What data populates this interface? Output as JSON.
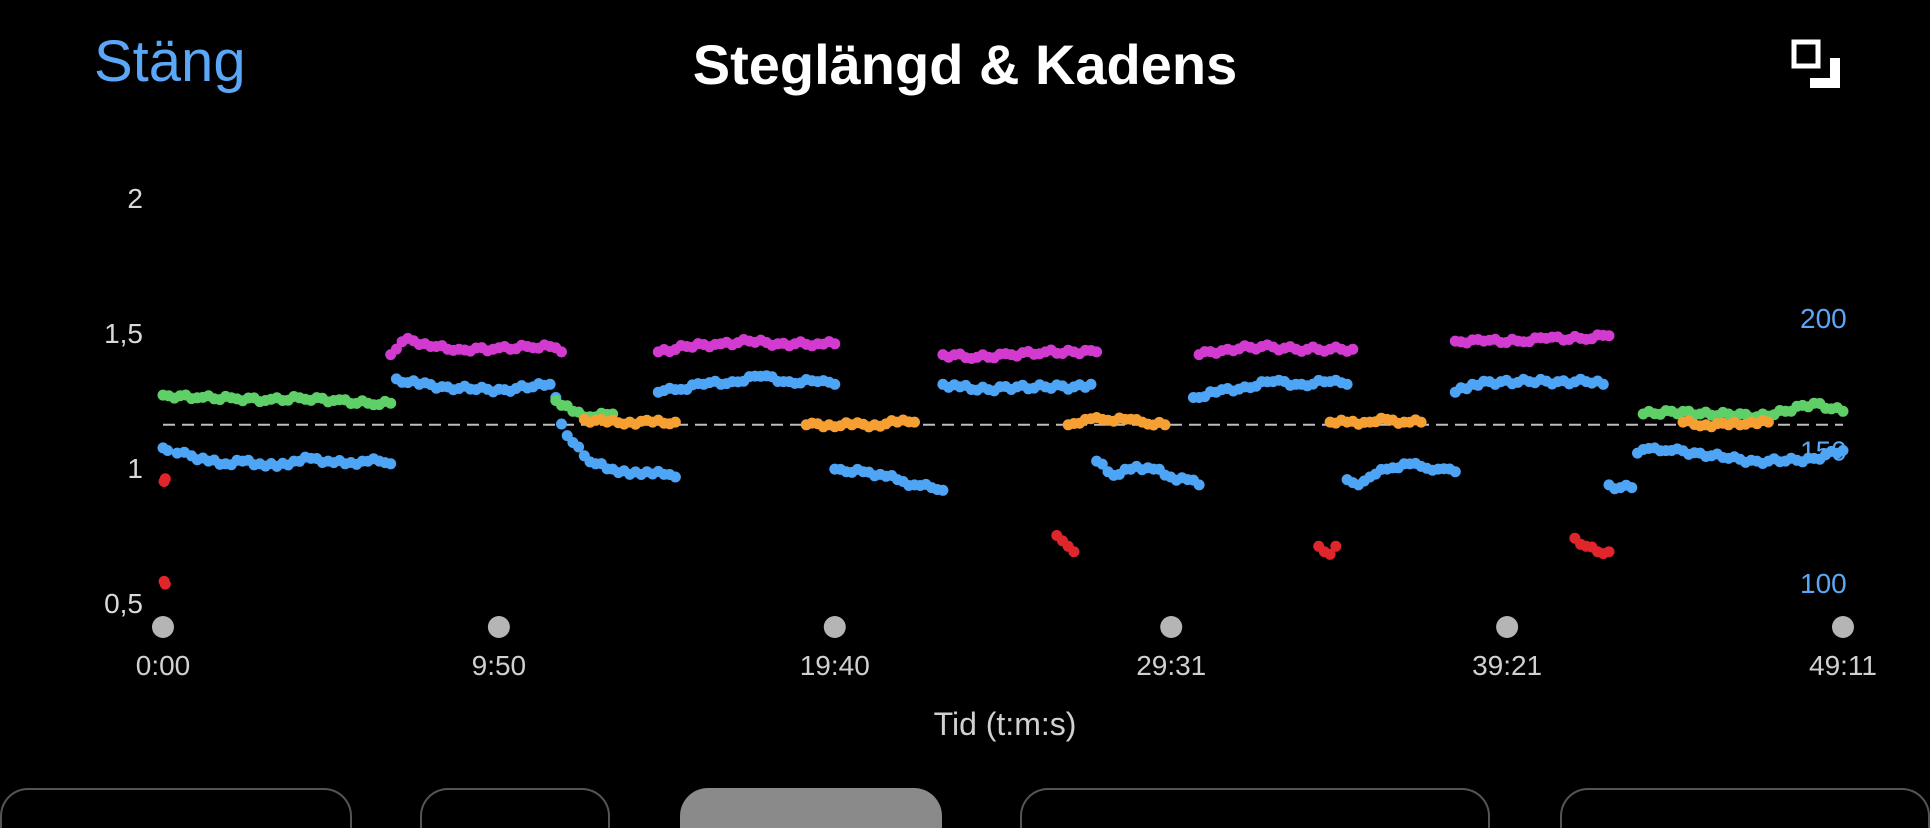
{
  "header": {
    "close_label": "Stäng",
    "title": "Steglängd & Kadens",
    "expand_icon": "expand-icon"
  },
  "chart_data": {
    "type": "scatter",
    "title": "Steglängd & Kadens",
    "xlabel": "Tid (t:m:s)",
    "x_ticks": [
      "0:00",
      "9:50",
      "19:40",
      "29:31",
      "39:21",
      "49:11"
    ],
    "x_tick_seconds": [
      0,
      590,
      1180,
      1771,
      2361,
      2951
    ],
    "xlim": [
      0,
      2951
    ],
    "y_left": {
      "ticks": [
        "2",
        "1,5",
        "1",
        "0,5"
      ],
      "tick_values": [
        2,
        1.5,
        1,
        0.5
      ],
      "ylim": [
        0.5,
        2
      ],
      "color": "#d9d9d9"
    },
    "y_right": {
      "ticks": [
        "200",
        "150",
        "100"
      ],
      "tick_values": [
        200,
        150,
        100
      ],
      "ylim": [
        100,
        200
      ],
      "color": "#5aa7f7"
    },
    "reference_line": {
      "axis": "left",
      "value": 1.16,
      "style": "dashed"
    },
    "colors": {
      "cadence": "#4ea4f5",
      "zone_red": "#e0262b",
      "zone_orange": "#f6a033",
      "zone_green": "#5fd068",
      "zone_pink": "#d33bd0",
      "marker": "#b5b5b5"
    },
    "series": [
      {
        "axis": "right",
        "color": "cadence",
        "segments": [
          [
            [
              0,
              151
            ],
            [
              8,
              150
            ],
            [
              25,
              149
            ],
            [
              50,
              148
            ],
            [
              80,
              146
            ],
            [
              110,
              145
            ],
            [
              140,
              146
            ],
            [
              170,
              145
            ],
            [
              200,
              144
            ],
            [
              230,
              146
            ],
            [
              260,
              147
            ],
            [
              290,
              146
            ],
            [
              320,
              145
            ],
            [
              350,
              146
            ],
            [
              380,
              146
            ],
            [
              400,
              145
            ]
          ],
          [
            [
              410,
              177
            ],
            [
              450,
              175
            ],
            [
              500,
              174
            ],
            [
              550,
              173
            ],
            [
              600,
              173
            ],
            [
              650,
              174
            ],
            [
              680,
              175
            ],
            [
              690,
              170
            ],
            [
              700,
              160
            ],
            [
              720,
              153
            ],
            [
              740,
              148
            ],
            [
              760,
              145
            ],
            [
              790,
              143
            ],
            [
              820,
              141
            ],
            [
              850,
              142
            ],
            [
              880,
              141
            ],
            [
              900,
              140
            ]
          ],
          [
            [
              870,
              172
            ],
            [
              900,
              173
            ],
            [
              950,
              175
            ],
            [
              1000,
              176
            ],
            [
              1050,
              178
            ],
            [
              1100,
              176
            ],
            [
              1150,
              176
            ],
            [
              1180,
              175
            ]
          ],
          [
            [
              1180,
              143
            ],
            [
              1200,
              142
            ],
            [
              1230,
              142
            ],
            [
              1260,
              141
            ],
            [
              1290,
              139
            ],
            [
              1320,
              137
            ],
            [
              1350,
              136
            ],
            [
              1370,
              135
            ]
          ],
          [
            [
              1370,
              175
            ],
            [
              1400,
              174
            ],
            [
              1450,
              173
            ],
            [
              1500,
              174
            ],
            [
              1550,
              174
            ],
            [
              1600,
              174
            ],
            [
              1630,
              175
            ]
          ],
          [
            [
              1640,
              146
            ],
            [
              1660,
              142
            ],
            [
              1680,
              141
            ],
            [
              1710,
              144
            ],
            [
              1740,
              143
            ],
            [
              1770,
              140
            ],
            [
              1800,
              139
            ],
            [
              1820,
              137
            ]
          ],
          [
            [
              1810,
              170
            ],
            [
              1850,
              172
            ],
            [
              1900,
              174
            ],
            [
              1950,
              176
            ],
            [
              2000,
              175
            ],
            [
              2050,
              176
            ],
            [
              2080,
              175
            ]
          ],
          [
            [
              2080,
              139
            ],
            [
              2100,
              137
            ],
            [
              2120,
              140
            ],
            [
              2150,
              143
            ],
            [
              2180,
              145
            ],
            [
              2210,
              144
            ],
            [
              2240,
              143
            ],
            [
              2270,
              142
            ]
          ],
          [
            [
              2270,
              172
            ],
            [
              2300,
              175
            ],
            [
              2350,
              176
            ],
            [
              2400,
              176
            ],
            [
              2450,
              176
            ],
            [
              2500,
              176
            ],
            [
              2530,
              175
            ]
          ],
          [
            [
              2540,
              137
            ],
            [
              2560,
              136
            ],
            [
              2580,
              136
            ]
          ],
          [
            [
              2590,
              149
            ],
            [
              2620,
              151
            ],
            [
              2650,
              150
            ],
            [
              2700,
              149
            ],
            [
              2750,
              147
            ],
            [
              2800,
              146
            ],
            [
              2850,
              146
            ],
            [
              2900,
              147
            ],
            [
              2951,
              150
            ]
          ]
        ]
      },
      {
        "axis": "left",
        "color": "zone_green",
        "segments": [
          [
            [
              0,
              1.27
            ],
            [
              60,
              1.26
            ],
            [
              120,
              1.26
            ],
            [
              180,
              1.25
            ],
            [
              240,
              1.26
            ],
            [
              300,
              1.25
            ],
            [
              360,
              1.24
            ],
            [
              400,
              1.24
            ]
          ],
          [
            [
              690,
              1.25
            ],
            [
              720,
              1.21
            ],
            [
              750,
              1.19
            ],
            [
              790,
              1.2
            ]
          ],
          [
            [
              2600,
              1.2
            ],
            [
              2650,
              1.21
            ],
            [
              2700,
              1.2
            ],
            [
              2750,
              1.2
            ],
            [
              2800,
              1.19
            ],
            [
              2850,
              1.21
            ],
            [
              2900,
              1.24
            ],
            [
              2951,
              1.21
            ]
          ]
        ]
      },
      {
        "axis": "left",
        "color": "zone_orange",
        "segments": [
          [
            [
              740,
              1.18
            ],
            [
              780,
              1.17
            ],
            [
              820,
              1.17
            ],
            [
              860,
              1.17
            ],
            [
              900,
              1.17
            ]
          ],
          [
            [
              1130,
              1.16
            ],
            [
              1170,
              1.16
            ],
            [
              1210,
              1.16
            ],
            [
              1250,
              1.16
            ],
            [
              1290,
              1.17
            ],
            [
              1320,
              1.17
            ]
          ],
          [
            [
              1590,
              1.16
            ],
            [
              1620,
              1.18
            ],
            [
              1650,
              1.18
            ],
            [
              1690,
              1.18
            ],
            [
              1720,
              1.17
            ],
            [
              1760,
              1.16
            ]
          ],
          [
            [
              2050,
              1.17
            ],
            [
              2080,
              1.17
            ],
            [
              2120,
              1.17
            ],
            [
              2150,
              1.18
            ],
            [
              2180,
              1.17
            ],
            [
              2210,
              1.17
            ]
          ],
          [
            [
              2670,
              1.17
            ],
            [
              2710,
              1.16
            ],
            [
              2750,
              1.16
            ],
            [
              2790,
              1.17
            ],
            [
              2820,
              1.17
            ]
          ]
        ]
      },
      {
        "axis": "left",
        "color": "zone_pink",
        "segments": [
          [
            [
              400,
              1.42
            ],
            [
              430,
              1.48
            ],
            [
              470,
              1.45
            ],
            [
              520,
              1.44
            ],
            [
              580,
              1.44
            ],
            [
              640,
              1.45
            ],
            [
              680,
              1.45
            ],
            [
              700,
              1.43
            ]
          ],
          [
            [
              870,
              1.43
            ],
            [
              920,
              1.45
            ],
            [
              980,
              1.46
            ],
            [
              1030,
              1.47
            ],
            [
              1080,
              1.46
            ],
            [
              1150,
              1.46
            ],
            [
              1180,
              1.46
            ]
          ],
          [
            [
              1370,
              1.42
            ],
            [
              1430,
              1.41
            ],
            [
              1490,
              1.42
            ],
            [
              1550,
              1.43
            ],
            [
              1600,
              1.43
            ],
            [
              1640,
              1.43
            ]
          ],
          [
            [
              1820,
              1.42
            ],
            [
              1870,
              1.44
            ],
            [
              1930,
              1.45
            ],
            [
              1990,
              1.44
            ],
            [
              2050,
              1.44
            ],
            [
              2090,
              1.44
            ]
          ],
          [
            [
              2270,
              1.47
            ],
            [
              2320,
              1.47
            ],
            [
              2380,
              1.47
            ],
            [
              2430,
              1.48
            ],
            [
              2490,
              1.48
            ],
            [
              2540,
              1.49
            ]
          ]
        ]
      },
      {
        "axis": "left",
        "color": "zone_red",
        "segments": [
          [
            [
              2,
              0.95
            ],
            [
              4,
              0.96
            ]
          ],
          [
            [
              2,
              0.58
            ],
            [
              4,
              0.57
            ]
          ],
          [
            [
              1570,
              0.75
            ],
            [
              1580,
              0.73
            ],
            [
              1590,
              0.71
            ],
            [
              1600,
              0.69
            ]
          ],
          [
            [
              2030,
              0.71
            ],
            [
              2040,
              0.69
            ],
            [
              2050,
              0.68
            ],
            [
              2060,
              0.71
            ]
          ],
          [
            [
              2480,
              0.74
            ],
            [
              2500,
              0.71
            ],
            [
              2520,
              0.69
            ],
            [
              2540,
              0.69
            ]
          ]
        ]
      }
    ]
  },
  "tabs": [
    {
      "label": ""
    },
    {
      "label": ""
    },
    {
      "label": "",
      "active": true
    },
    {
      "label": ""
    },
    {
      "label": ""
    }
  ]
}
